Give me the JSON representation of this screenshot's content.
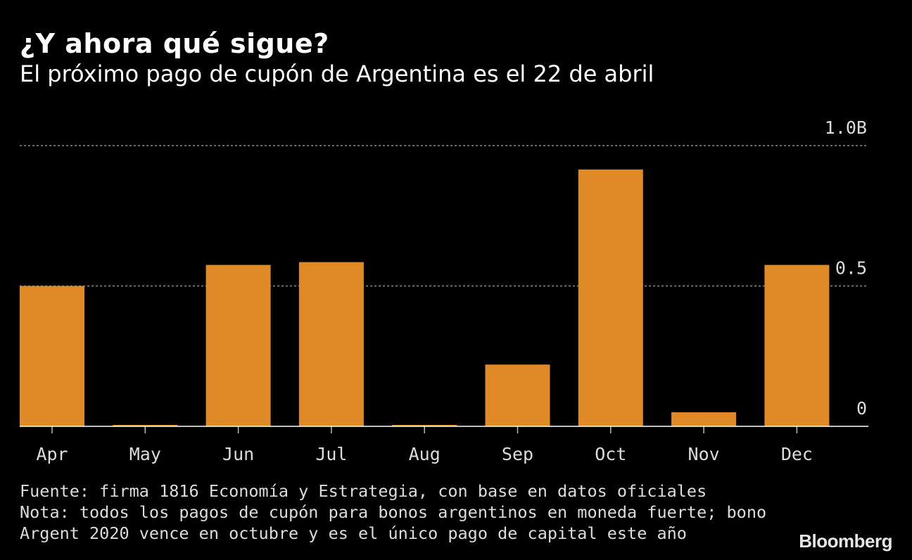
{
  "chart_data": {
    "type": "bar",
    "title": "¿Y ahora qué sigue?",
    "subtitle": "El próximo pago de cupón de Argentina es el 22 de abril",
    "categories": [
      "Apr",
      "May",
      "Jun",
      "Jul",
      "Aug",
      "Sep",
      "Oct",
      "Nov",
      "Dec"
    ],
    "values": [
      0.5,
      0.005,
      0.575,
      0.585,
      0.005,
      0.22,
      0.915,
      0.05,
      0.575
    ],
    "y_unit": "B",
    "ylim": [
      0,
      1.0
    ],
    "y_ticks": [
      {
        "value": 0,
        "label": "0"
      },
      {
        "value": 0.5,
        "label": "0.5"
      },
      {
        "value": 1.0,
        "label": "1.0B"
      }
    ],
    "grid": "dotted horizontal",
    "y_axis_position": "right",
    "bar_color": "#e08a27",
    "grid_color": "#8a8a8a",
    "axis_color": "#ffffff"
  },
  "footer": {
    "source": "Fuente: firma 1816 Economía y Estrategia, con base en datos oficiales",
    "note_line1": "Nota: todos los pagos de cupón para bonos argentinos en moneda fuerte; bono",
    "note_line2": "Argent 2020 vence en octubre y es el único pago de capital este año",
    "logo": "Bloomberg"
  }
}
